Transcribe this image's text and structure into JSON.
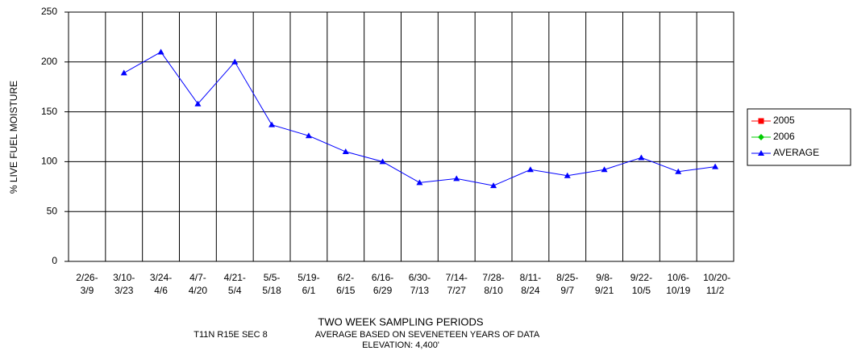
{
  "chart_data": {
    "type": "line",
    "y_label": "% LIVE FUEL MOISTURE",
    "x_label": "TWO WEEK SAMPLING PERIODS",
    "notes": [
      "T11N R15E SEC 8",
      "AVERAGE BASED ON SEVENETEEN YEARS OF DATA",
      "ELEVATION: 4,400'"
    ],
    "categories": [
      "2/26-3/9",
      "3/10-3/23",
      "3/24-4/6",
      "4/7-4/20",
      "4/21-5/4",
      "5/5-5/18",
      "5/19-6/1",
      "6/2-6/15",
      "6/16-6/29",
      "6/30-7/13",
      "7/14-7/27",
      "7/28-8/10",
      "8/11-8/24",
      "8/25-9/7",
      "9/8-9/21",
      "9/22-10/5",
      "10/6-10/19",
      "10/20-11/2"
    ],
    "series": [
      {
        "name": "2005",
        "color": "#ff0000",
        "marker": "square",
        "values": [
          null,
          null,
          null,
          null,
          null,
          null,
          null,
          null,
          null,
          null,
          null,
          null,
          null,
          null,
          null,
          null,
          null,
          null
        ]
      },
      {
        "name": "2006",
        "color": "#00cc00",
        "marker": "diamond",
        "values": [
          null,
          null,
          null,
          null,
          null,
          null,
          null,
          null,
          null,
          null,
          null,
          null,
          null,
          null,
          null,
          null,
          null,
          null
        ]
      },
      {
        "name": "AVERAGE",
        "color": "#0000ff",
        "marker": "triangle",
        "values": [
          null,
          189,
          210,
          158,
          200,
          137,
          126,
          110,
          100,
          79,
          83,
          76,
          92,
          86,
          92,
          104,
          90,
          95
        ]
      }
    ],
    "ylim": [
      0,
      250
    ],
    "yticks": [
      0,
      50,
      100,
      150,
      200,
      250
    ],
    "grid": true,
    "legend": "right"
  }
}
